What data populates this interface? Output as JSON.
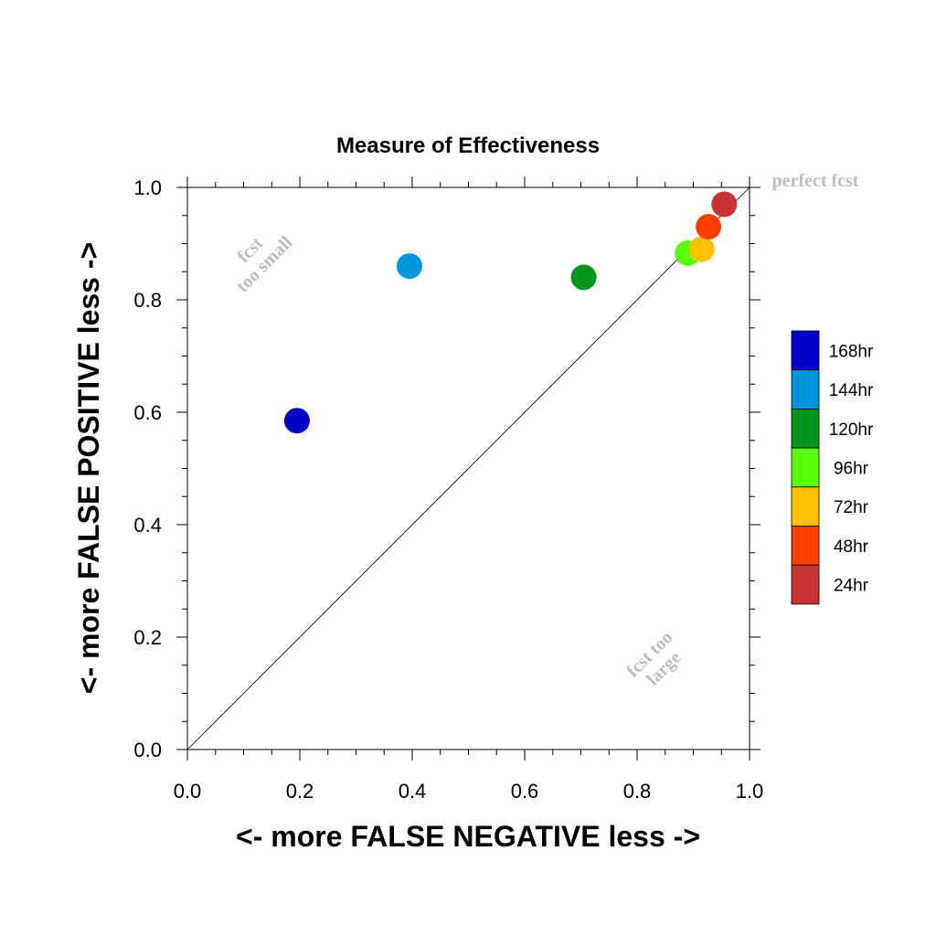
{
  "chart_data": {
    "type": "scatter",
    "title": "Measure of Effectiveness",
    "xlabel": "<- more   FALSE NEGATIVE   less ->",
    "ylabel": "<- more   FALSE POSITIVE   less ->",
    "xlim": [
      0.0,
      1.0
    ],
    "ylim": [
      0.0,
      1.0
    ],
    "xticks": [
      "0.0",
      "0.2",
      "0.4",
      "0.6",
      "0.8",
      "1.0"
    ],
    "yticks": [
      "0.0",
      "0.2",
      "0.4",
      "0.6",
      "0.8",
      "1.0"
    ],
    "grid": false,
    "legend_position": "right",
    "annotations": {
      "perfect": "perfect fcst",
      "too_small_1": "fcst",
      "too_small_2": "too small",
      "too_large_1": "fcst too",
      "too_large_2": "large"
    },
    "series": [
      {
        "name": "168hr",
        "color": "#0000c8",
        "x": 0.195,
        "y": 0.585
      },
      {
        "name": "144hr",
        "color": "#0096dc",
        "x": 0.395,
        "y": 0.86
      },
      {
        "name": "120hr",
        "color": "#00961e",
        "x": 0.705,
        "y": 0.84
      },
      {
        "name": "96hr",
        "color": "#5aff0a",
        "x": 0.89,
        "y": 0.883
      },
      {
        "name": "72hr",
        "color": "#ffc000",
        "x": 0.915,
        "y": 0.89
      },
      {
        "name": "48hr",
        "color": "#ff4000",
        "x": 0.927,
        "y": 0.93
      },
      {
        "name": "24hr",
        "color": "#c83232",
        "x": 0.955,
        "y": 0.97
      }
    ]
  }
}
